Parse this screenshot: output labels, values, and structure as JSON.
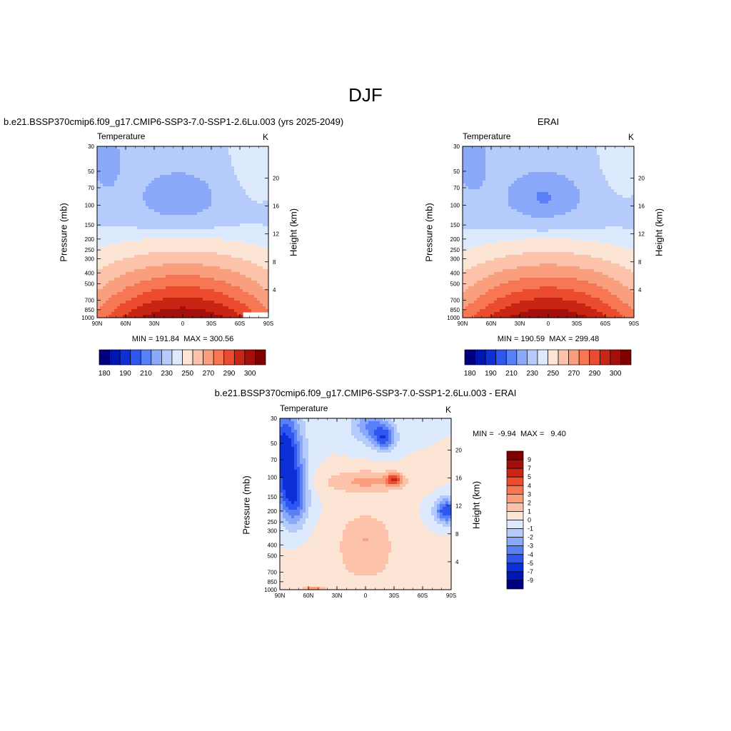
{
  "page_title": "DJF",
  "colormap_temp": [
    "#00007f",
    "#0016b0",
    "#0d2fd8",
    "#2f56f0",
    "#5a80f7",
    "#8aa9fb",
    "#b4cbfc",
    "#dde9fd",
    "#fde5d6",
    "#fcc3aa",
    "#fa9f7d",
    "#f77654",
    "#ea4c2d",
    "#c92515",
    "#a30f0b",
    "#800000"
  ],
  "colormap_diff": [
    "#00007f",
    "#0016b0",
    "#0d2fd8",
    "#2f56f0",
    "#5a80f7",
    "#8aa9fb",
    "#b4cbfc",
    "#dde9fd",
    "#fde5d6",
    "#fcc3aa",
    "#fa9f7d",
    "#f77654",
    "#ea4c2d",
    "#c92515",
    "#a30f0b",
    "#800000"
  ],
  "panels": [
    {
      "title": "b.e21.BSSP370cmip6.f09_g17.CMIP6-SSP3-7.0-SSP1-2.6Lu.003 (yrs 2025-2049)",
      "variable": "Temperature",
      "units": "K",
      "minmax": "MIN = 191.84  MAX = 300.56"
    },
    {
      "title": "ERAI",
      "variable": "Temperature",
      "units": "K",
      "minmax": "MIN = 190.59  MAX = 299.48"
    },
    {
      "title": "b.e21.BSSP370cmip6.f09_g17.CMIP6-SSP3-7.0-SSP1-2.6Lu.003 - ERAI",
      "variable": "Temperature",
      "units": "K",
      "minmax": "MIN =  -9.94  MAX =   9.40"
    }
  ],
  "chart_data": [
    {
      "type": "heatmap",
      "title": "b.e21.BSSP370cmip6.f09_g17.CMIP6-SSP3-7.0-SSP1-2.6Lu.003 (yrs 2025-2049)",
      "subtitle": "Temperature",
      "units": "K",
      "xlabel": "",
      "ylabel": "Pressure (mb)",
      "ylabel_right": "Height (km)",
      "x_ticks": [
        "90N",
        "60N",
        "30N",
        "0",
        "30S",
        "60S",
        "90S"
      ],
      "x_values": [
        90,
        60,
        30,
        0,
        -30,
        -60,
        -90
      ],
      "y_ticks": [
        30,
        50,
        70,
        100,
        150,
        200,
        250,
        300,
        400,
        500,
        700,
        850,
        1000
      ],
      "y_scale": "log",
      "ylim": [
        30,
        1000
      ],
      "y_right_ticks": [
        4,
        8,
        12,
        16,
        20
      ],
      "colorbar_levels": [
        180,
        185,
        190,
        195,
        200,
        210,
        220,
        230,
        240,
        250,
        260,
        270,
        280,
        290,
        300
      ],
      "colorbar_labels": [
        "180",
        "190",
        "210",
        "230",
        "250",
        "270",
        "290",
        "300"
      ],
      "min": 191.84,
      "max": 300.56
    },
    {
      "type": "heatmap",
      "title": "ERAI",
      "subtitle": "Temperature",
      "units": "K",
      "xlabel": "",
      "ylabel": "Pressure (mb)",
      "ylabel_right": "Height (km)",
      "x_ticks": [
        "90N",
        "60N",
        "30N",
        "0",
        "30S",
        "60S",
        "90S"
      ],
      "x_values": [
        90,
        60,
        30,
        0,
        -30,
        -60,
        -90
      ],
      "y_ticks": [
        30,
        50,
        70,
        100,
        150,
        200,
        250,
        300,
        400,
        500,
        700,
        850,
        1000
      ],
      "y_scale": "log",
      "ylim": [
        30,
        1000
      ],
      "y_right_ticks": [
        4,
        8,
        12,
        16,
        20
      ],
      "colorbar_levels": [
        180,
        185,
        190,
        195,
        200,
        210,
        220,
        230,
        240,
        250,
        260,
        270,
        280,
        290,
        300
      ],
      "colorbar_labels": [
        "180",
        "190",
        "210",
        "230",
        "250",
        "270",
        "290",
        "300"
      ],
      "min": 190.59,
      "max": 299.48
    },
    {
      "type": "heatmap",
      "title": "b.e21.BSSP370cmip6.f09_g17.CMIP6-SSP3-7.0-SSP1-2.6Lu.003 - ERAI",
      "subtitle": "Temperature",
      "units": "K",
      "xlabel": "",
      "ylabel": "Pressure (mb)",
      "ylabel_right": "Height (km)",
      "x_ticks": [
        "90N",
        "60N",
        "30N",
        "0",
        "30S",
        "60S",
        "90S"
      ],
      "x_values": [
        90,
        60,
        30,
        0,
        -30,
        -60,
        -90
      ],
      "y_ticks": [
        30,
        50,
        70,
        100,
        150,
        200,
        250,
        300,
        400,
        500,
        700,
        850,
        1000
      ],
      "y_scale": "log",
      "ylim": [
        30,
        1000
      ],
      "y_right_ticks": [
        4,
        8,
        12,
        16,
        20
      ],
      "colorbar_labels": [
        "9",
        "7",
        "5",
        "4",
        "3",
        "2",
        "1",
        "0",
        "-1",
        "-2",
        "-3",
        "-4",
        "-5",
        "-7",
        "-9"
      ],
      "min": -9.94,
      "max": 9.4
    }
  ]
}
